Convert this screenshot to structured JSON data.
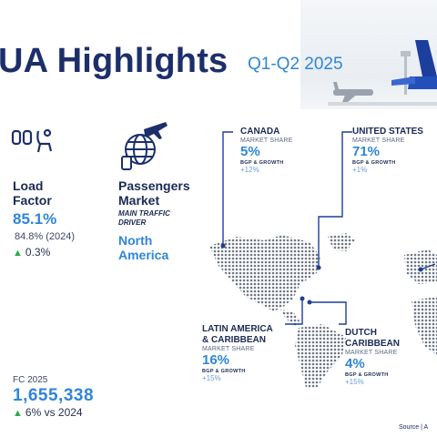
{
  "header": {
    "title": "UA Highlights",
    "subtitle": "Q1-Q2 2025"
  },
  "icons": {
    "seat": "seat-icon",
    "globe": "globe-plane-icon",
    "plane": "airplane-icon"
  },
  "load_factor": {
    "label_line1": "Load",
    "label_line2": "Factor",
    "value": "85.1%",
    "previous": "84.8% (2024)",
    "change": "0.3%"
  },
  "passengers_market": {
    "label_line1": "Passengers",
    "label_line2": "Market",
    "driver_label_line1": "MAIN TRAFFIC",
    "driver_label_line2": "DRIVER",
    "driver_line1": "North",
    "driver_line2": "America"
  },
  "forecast": {
    "label": "FC 2025",
    "value": "1,655,338",
    "change": "6% vs 2024"
  },
  "regions": {
    "canada": {
      "name_line1": "CANADA",
      "sub": "MARKET SHARE",
      "share": "5%",
      "growth_label": "BGP & GROWTH",
      "growth": "+12%"
    },
    "united_states": {
      "name_line1": "UNITED STATES",
      "sub": "MARKET SHARE",
      "share": "71%",
      "growth_label": "BGP & GROWTH",
      "growth": "+1%"
    },
    "latin_america": {
      "name_line1": "LATIN AMERICA",
      "name_line2": "& CARIBBEAN",
      "sub": "MARKET SHARE",
      "share": "16%",
      "growth_label": "BGP & GROWTH",
      "growth": "+15%"
    },
    "dutch_caribbean": {
      "name_line1": "DUTCH",
      "name_line2": "CARIBBEAN",
      "sub": "MARKET SHARE",
      "share": "4%",
      "growth_label": "BGP & GROWTH",
      "growth": "+15%"
    }
  },
  "footer": {
    "source": "Source | A"
  },
  "colors": {
    "navy": "#1c2f6b",
    "accent_blue": "#2f86d8",
    "growth_green": "#2ea84a",
    "map_dots": "#6f7784"
  }
}
